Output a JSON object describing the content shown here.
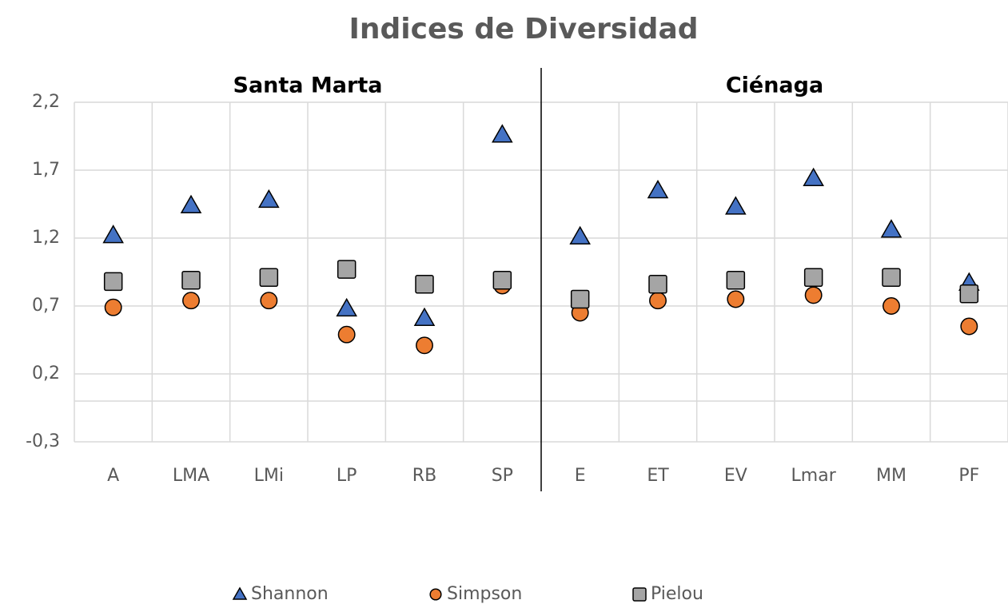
{
  "chart_data": {
    "type": "scatter",
    "title": "Indices de Diversidad",
    "annotations": [
      "Santa Marta",
      "Ciénaga"
    ],
    "categories": [
      "A",
      "LMA",
      "LMi",
      "LP",
      "RB",
      "SP",
      "E",
      "ET",
      "EV",
      "Lmar",
      "MM",
      "PF"
    ],
    "series": [
      {
        "name": "Shannon",
        "color": "#4472c4",
        "marker": "triangle",
        "values": [
          1.22,
          1.44,
          1.48,
          0.68,
          0.61,
          1.96,
          1.21,
          1.55,
          1.43,
          1.64,
          1.26,
          0.87
        ]
      },
      {
        "name": "Simpson",
        "color": "#ed7d31",
        "marker": "circle",
        "values": [
          0.69,
          0.74,
          0.74,
          0.49,
          0.41,
          0.85,
          0.65,
          0.74,
          0.75,
          0.78,
          0.7,
          0.55
        ]
      },
      {
        "name": "Pielou",
        "color": "#a5a5a5",
        "marker": "square",
        "values": [
          0.88,
          0.89,
          0.91,
          0.97,
          0.86,
          0.89,
          0.75,
          0.86,
          0.89,
          0.91,
          0.91,
          0.79
        ]
      }
    ],
    "ylim": [
      -0.3,
      2.2
    ],
    "yticks": [
      {
        "value": -0.3,
        "label": "-0,3"
      },
      {
        "value": 0.2,
        "label": "0,2"
      },
      {
        "value": 0.7,
        "label": "0,7"
      },
      {
        "value": 1.2,
        "label": "1,2"
      },
      {
        "value": 1.7,
        "label": "1,7"
      },
      {
        "value": 2.2,
        "label": "2,2"
      }
    ],
    "grid": true,
    "legend": "bottom"
  }
}
